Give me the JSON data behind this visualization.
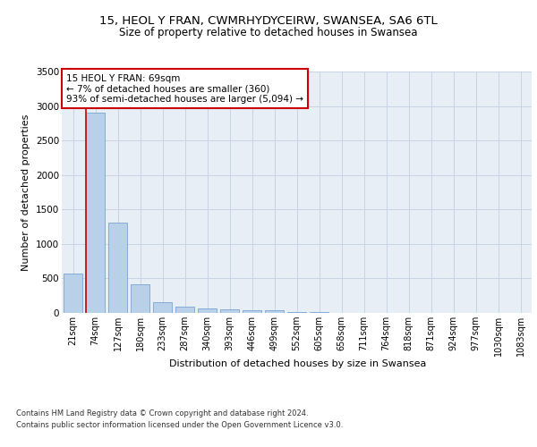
{
  "title_line1": "15, HEOL Y FRAN, CWMRHYDYCEIRW, SWANSEA, SA6 6TL",
  "title_line2": "Size of property relative to detached houses in Swansea",
  "xlabel": "Distribution of detached houses by size in Swansea",
  "ylabel": "Number of detached properties",
  "categories": [
    "21sqm",
    "74sqm",
    "127sqm",
    "180sqm",
    "233sqm",
    "287sqm",
    "340sqm",
    "393sqm",
    "446sqm",
    "499sqm",
    "552sqm",
    "605sqm",
    "658sqm",
    "711sqm",
    "764sqm",
    "818sqm",
    "871sqm",
    "924sqm",
    "977sqm",
    "1030sqm",
    "1083sqm"
  ],
  "bar_values": [
    570,
    2900,
    1310,
    415,
    155,
    85,
    60,
    55,
    45,
    40,
    10,
    8,
    5,
    3,
    2,
    2,
    1,
    1,
    1,
    1,
    0
  ],
  "bar_color": "#b8d0e8",
  "bar_edge_color": "#6699cc",
  "grid_color": "#c8d4e4",
  "background_color": "#e8eef6",
  "vline_color": "#cc0000",
  "annotation_text": "15 HEOL Y FRAN: 69sqm\n← 7% of detached houses are smaller (360)\n93% of semi-detached houses are larger (5,094) →",
  "annotation_box_color": "#ffffff",
  "annotation_box_edge": "#cc0000",
  "ylim": [
    0,
    3500
  ],
  "yticks": [
    0,
    500,
    1000,
    1500,
    2000,
    2500,
    3000,
    3500
  ],
  "footer_line1": "Contains HM Land Registry data © Crown copyright and database right 2024.",
  "footer_line2": "Contains public sector information licensed under the Open Government Licence v3.0."
}
